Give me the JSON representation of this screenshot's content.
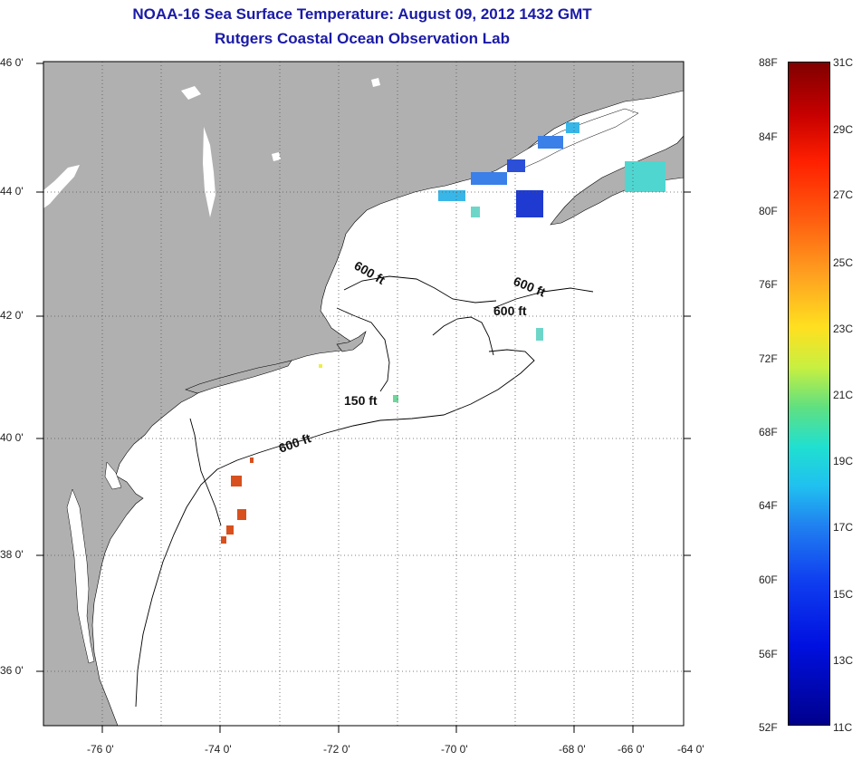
{
  "title_line1": "NOAA-16 Sea Surface Temperature:  August 09, 2012 1432 GMT",
  "title_line2": "Rutgers Coastal Ocean Observation Lab",
  "map": {
    "lat_labels": [
      "46 0'",
      "44 0'",
      "42 0'",
      "40 0'",
      "38 0'",
      "36 0'"
    ],
    "lon_labels": [
      "-76 0'",
      "-74 0'",
      "-72 0'",
      "-70 0'",
      "-68 0'",
      "-66 0'",
      "-64 0'"
    ],
    "depth_contours": [
      "600 ft",
      "600 ft",
      "600 ft",
      "150 ft",
      "600 ft"
    ],
    "land_color": "#b0b0b0",
    "ocean_color": "#ffffff"
  },
  "colorbar": {
    "fahrenheit": [
      "88F",
      "84F",
      "80F",
      "76F",
      "72F",
      "68F",
      "64F",
      "60F",
      "56F",
      "52F"
    ],
    "celsius": [
      "31C",
      "29C",
      "27C",
      "25C",
      "23C",
      "21C",
      "19C",
      "17C",
      "15C",
      "13C",
      "11C"
    ],
    "top_color": "#800000",
    "bottom_color": "#00008c"
  }
}
